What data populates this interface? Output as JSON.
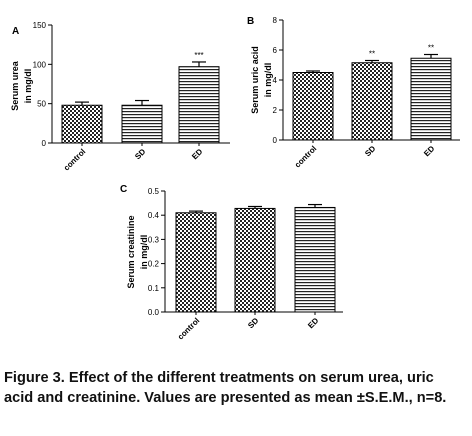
{
  "chart_data": [
    {
      "panel": "A",
      "type": "bar",
      "ylabel": [
        "Serum urea",
        "in mg/dl"
      ],
      "categories": [
        "control",
        "SD",
        "ED"
      ],
      "values": [
        48,
        48,
        97
      ],
      "errors": [
        4,
        6,
        6
      ],
      "significance": [
        "",
        "",
        "***"
      ],
      "patterns": [
        "checker",
        "hlines",
        "hlines"
      ],
      "ylim": [
        0,
        150
      ],
      "yticks": [
        0,
        50,
        100,
        150
      ],
      "ytick_labels": [
        "0",
        "50",
        "100",
        "150"
      ],
      "grid": false
    },
    {
      "panel": "B",
      "type": "bar",
      "ylabel": [
        "Serum uric acid",
        "in mg/dl"
      ],
      "categories": [
        "control",
        "SD",
        "ED"
      ],
      "values": [
        4.5,
        5.15,
        5.45
      ],
      "errors": [
        0.1,
        0.15,
        0.25
      ],
      "significance": [
        "",
        "**",
        "**"
      ],
      "patterns": [
        "checker",
        "checker",
        "hlines"
      ],
      "ylim": [
        0,
        8
      ],
      "yticks": [
        0,
        2,
        4,
        6,
        8
      ],
      "ytick_labels": [
        "0",
        "2",
        "4",
        "6",
        "8"
      ],
      "grid": false
    },
    {
      "panel": "C",
      "type": "bar",
      "ylabel": [
        "Serum creatinine",
        "in mg/dl"
      ],
      "categories": [
        "control",
        "SD",
        "ED"
      ],
      "values": [
        0.41,
        0.428,
        0.432
      ],
      "errors": [
        0.007,
        0.008,
        0.012
      ],
      "significance": [
        "",
        "",
        ""
      ],
      "patterns": [
        "checker",
        "checker",
        "hlines"
      ],
      "ylim": [
        0,
        0.5
      ],
      "yticks": [
        0,
        0.1,
        0.2,
        0.3,
        0.4,
        0.5
      ],
      "ytick_labels": [
        "0.0",
        "0.1",
        "0.2",
        "0.3",
        "0.4",
        "0.5"
      ],
      "grid": false
    }
  ],
  "caption": {
    "line1": "Figure 3. Effect of the different treatments on serum urea, uric",
    "line2": "acid and creatinine. Values are presented as mean ±S.E.M., n=8."
  }
}
